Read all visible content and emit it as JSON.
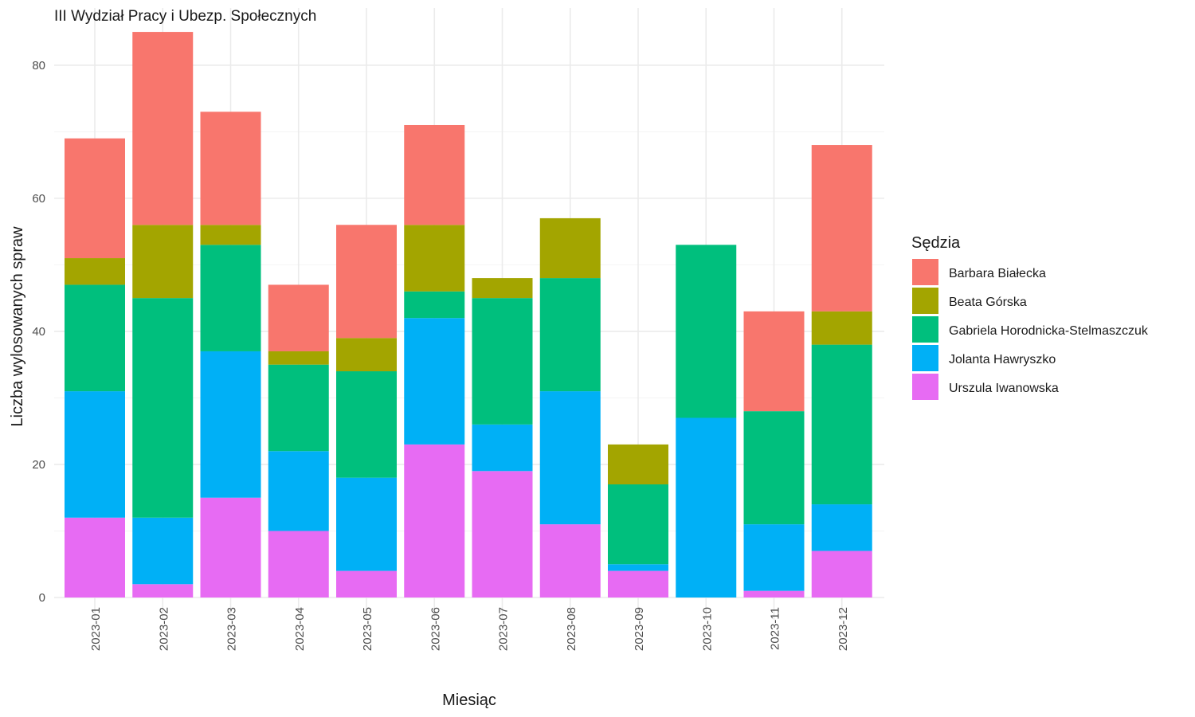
{
  "chart_data": {
    "type": "bar",
    "stacked": true,
    "title": "III Wydział Pracy i Ubezp. Społecznych",
    "xlabel": "Miesiąc",
    "ylabel": "Liczba wylosowanych spraw",
    "ylim": [
      0,
      88
    ],
    "yticks": [
      0,
      20,
      40,
      60,
      80
    ],
    "grid": true,
    "legend": {
      "title": "Sędzia",
      "position": "right"
    },
    "categories": [
      "2023-01",
      "2023-02",
      "2023-03",
      "2023-04",
      "2023-05",
      "2023-06",
      "2023-07",
      "2023-08",
      "2023-09",
      "2023-10",
      "2023-11",
      "2023-12"
    ],
    "series": [
      {
        "name": "Barbara Białecka",
        "color": "#F8766D",
        "values": [
          18,
          29,
          17,
          10,
          17,
          15,
          0,
          0,
          0,
          0,
          15,
          25
        ]
      },
      {
        "name": "Beata Górska",
        "color": "#A3A500",
        "values": [
          4,
          11,
          3,
          2,
          5,
          10,
          3,
          9,
          6,
          0,
          0,
          5
        ]
      },
      {
        "name": "Gabriela Horodnicka-Stelmaszczuk",
        "color": "#00BF7D",
        "values": [
          16,
          33,
          16,
          13,
          16,
          4,
          19,
          17,
          12,
          26,
          17,
          24
        ]
      },
      {
        "name": "Jolanta Hawryszko",
        "color": "#00B0F6",
        "values": [
          19,
          10,
          22,
          12,
          14,
          19,
          7,
          20,
          1,
          27,
          10,
          7
        ]
      },
      {
        "name": "Urszula Iwanowska",
        "color": "#E76BF3",
        "values": [
          12,
          2,
          15,
          10,
          4,
          23,
          19,
          11,
          4,
          0,
          1,
          7
        ]
      }
    ]
  }
}
